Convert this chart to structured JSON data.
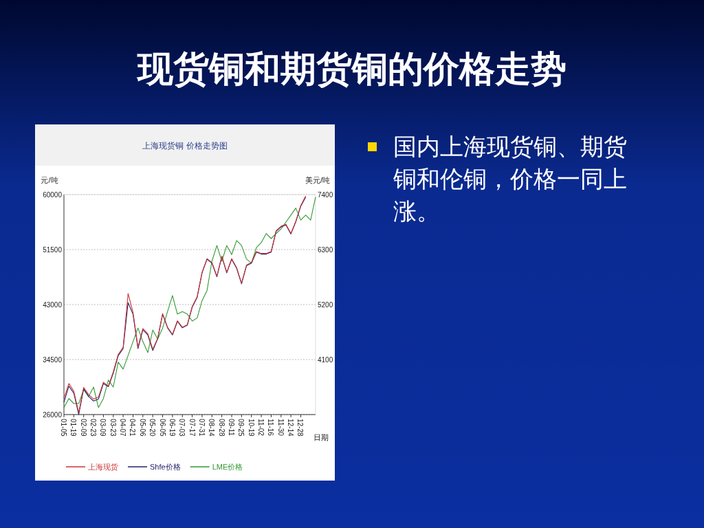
{
  "chart_data": {
    "type": "line",
    "title": "现货铜和期货铜的价格走势",
    "subtitle": "上海现货铜 价格走势图",
    "ylabel": "元/吨",
    "y2label": "美元/吨",
    "xlabel": "日期",
    "annotations": [
      "国内上海现货铜、期货铜和伦铜，价格一同上涨。"
    ],
    "categories": [
      "01-05",
      null,
      "01-19",
      null,
      "02-09",
      null,
      "02-23",
      null,
      "03-09",
      null,
      "03-23",
      null,
      "04-07",
      null,
      "04-21",
      null,
      "05-06",
      null,
      "05-20",
      null,
      "06-05",
      null,
      "06-19",
      null,
      "07-03",
      null,
      "07-17",
      null,
      "07-31",
      null,
      "08-14",
      null,
      "08-28",
      null,
      "09-11",
      null,
      "09-25",
      null,
      "10-19",
      null,
      "11-02",
      null,
      "11-16",
      null,
      "11-30",
      null,
      "12-14",
      null,
      "12-28",
      null,
      null,
      null
    ],
    "ylim": [
      26000,
      60000
    ],
    "yticks": [
      26000,
      34500,
      43000,
      51500,
      60000
    ],
    "y2lim": [
      3000,
      7400
    ],
    "y2ticks": [
      4100,
      5200,
      6300,
      7400
    ],
    "grid": "y",
    "legend": "bottom",
    "series": [
      {
        "name": "上海现货",
        "color": "#cc3333",
        "values": [
          28500,
          30800,
          29600,
          26300,
          30200,
          29100,
          28400,
          28700,
          31000,
          30400,
          32600,
          35300,
          36400,
          44700,
          41800,
          36400,
          39300,
          38500,
          36100,
          37800,
          41600,
          39500,
          38400,
          40500,
          39500,
          39900,
          42700,
          44200,
          48000,
          50100,
          49500,
          47400,
          50500,
          48000,
          50100,
          48700,
          46300,
          49100,
          49500,
          51200,
          50900,
          50900,
          51200,
          54400,
          55100,
          55400,
          54000,
          55900,
          58300,
          59800,
          null,
          null
        ]
      },
      {
        "name": "Shfe价格",
        "color": "#22226e",
        "values": [
          27900,
          30400,
          29300,
          26000,
          30000,
          28800,
          28100,
          28400,
          30800,
          30300,
          32400,
          35100,
          36200,
          43300,
          41500,
          36200,
          39100,
          38300,
          35900,
          37700,
          41500,
          39400,
          38300,
          40400,
          39400,
          39800,
          42600,
          44100,
          47900,
          50000,
          49400,
          47300,
          50400,
          47900,
          50000,
          48600,
          46200,
          49000,
          49400,
          51100,
          50800,
          50800,
          51100,
          54300,
          55000,
          55300,
          53900,
          55800,
          58200,
          59600,
          null,
          null
        ]
      },
      {
        "name": "LME价格",
        "color": "#339933",
        "axis": "y2",
        "values": [
          3140,
          3320,
          3220,
          3220,
          3500,
          3360,
          3550,
          3140,
          3320,
          3690,
          3550,
          4050,
          3910,
          4180,
          4460,
          4730,
          4460,
          4240,
          4690,
          4510,
          4730,
          5060,
          5380,
          5010,
          5060,
          5010,
          4870,
          4930,
          5280,
          5480,
          6070,
          6380,
          6070,
          6380,
          6200,
          6480,
          6380,
          6110,
          6030,
          6340,
          6440,
          6620,
          6520,
          6620,
          6710,
          6850,
          6990,
          7130,
          6890,
          6990,
          6890,
          7350
        ]
      }
    ]
  }
}
